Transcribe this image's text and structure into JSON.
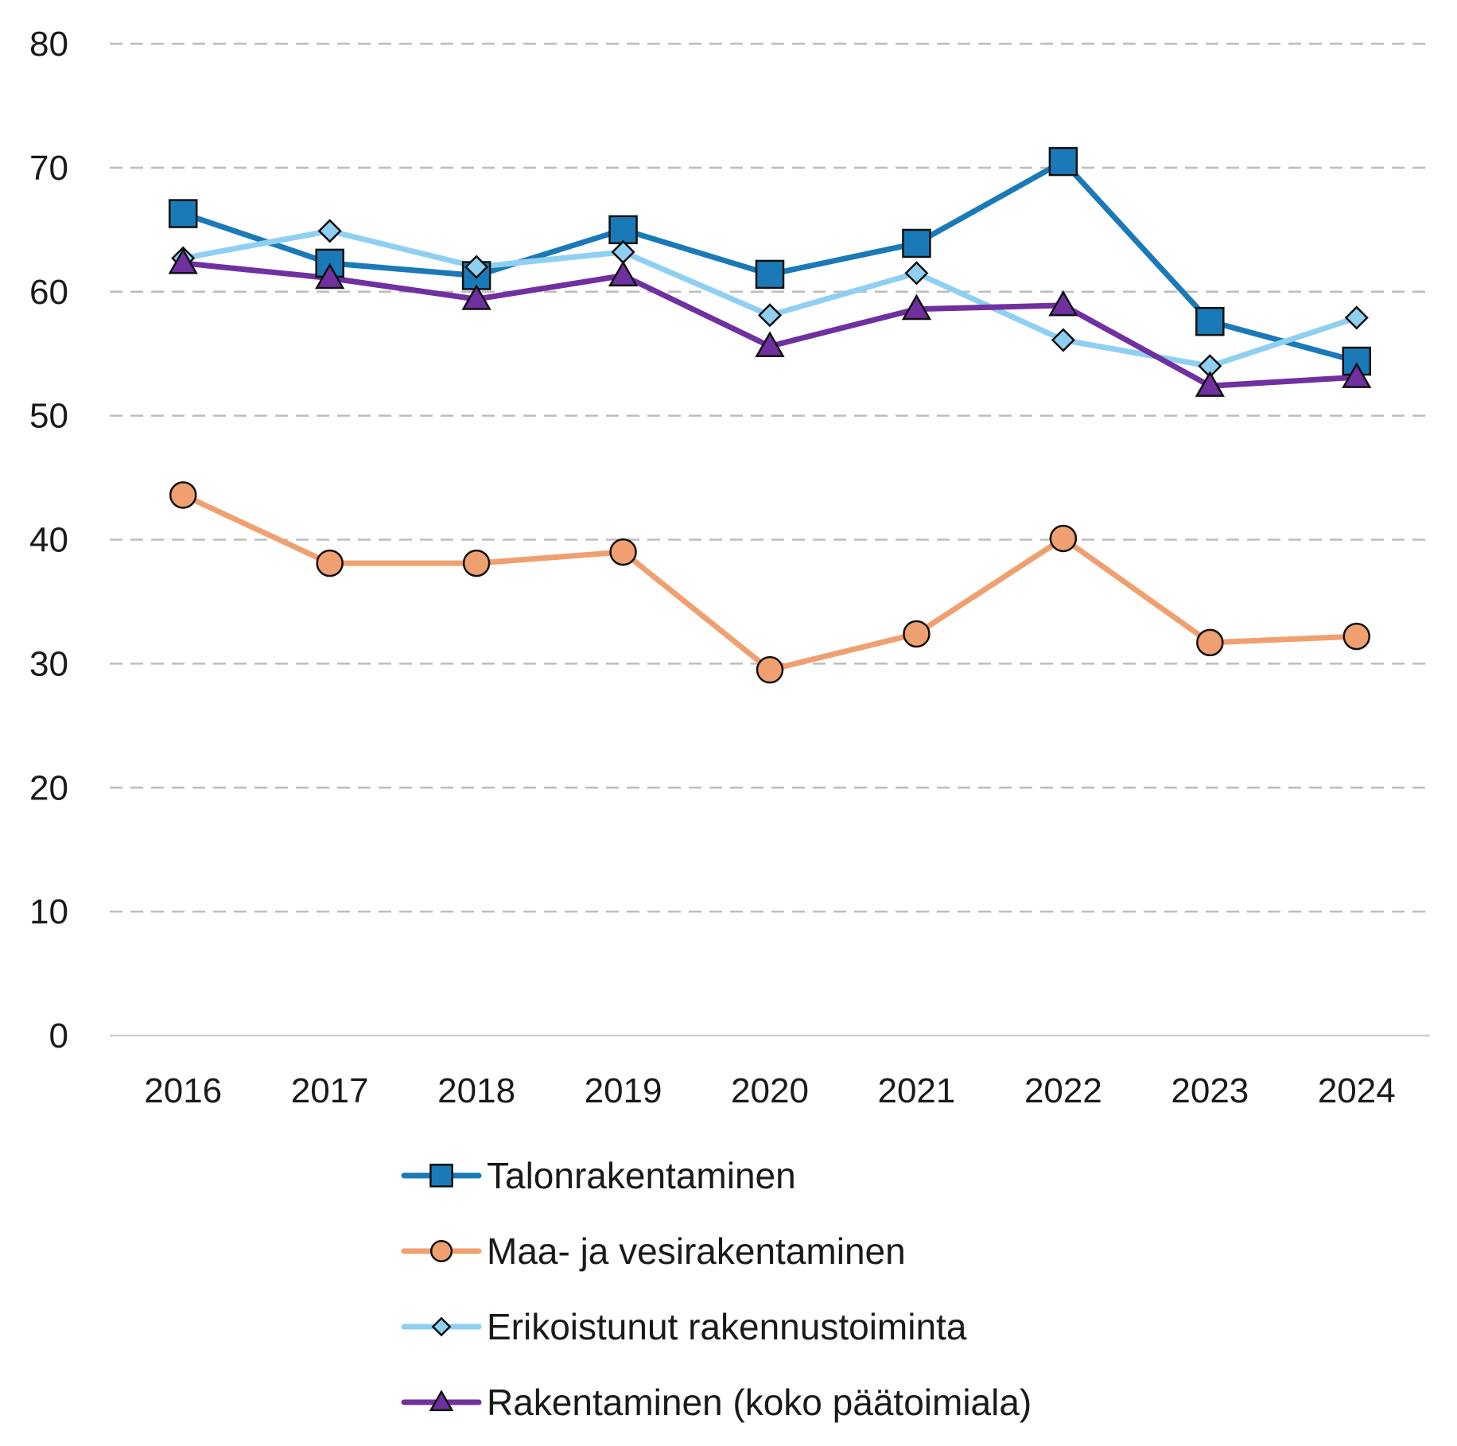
{
  "chart_data": {
    "type": "line",
    "title": "",
    "xlabel": "",
    "ylabel": "",
    "ylim": [
      0,
      80
    ],
    "yticks": [
      0,
      10,
      20,
      30,
      40,
      50,
      60,
      70,
      80
    ],
    "grid": "horizontal dashed",
    "legend_position": "bottom",
    "categories": [
      "2016",
      "2017",
      "2018",
      "2019",
      "2020",
      "2021",
      "2022",
      "2023",
      "2024"
    ],
    "series": [
      {
        "name": "Talonrakentaminen",
        "color": "#1a7ab8",
        "marker": "square",
        "marker_fill": "#1a7ab8",
        "values": [
          66.3,
          62.3,
          61.3,
          65.0,
          61.4,
          63.9,
          70.5,
          57.6,
          54.4
        ]
      },
      {
        "name": "Maa- ja vesirakentaminen",
        "color": "#f0a070",
        "marker": "circle",
        "marker_fill": "#f0a070",
        "values": [
          43.6,
          38.1,
          38.1,
          39.0,
          29.5,
          32.4,
          40.1,
          31.7,
          32.2
        ]
      },
      {
        "name": "Erikoistunut rakennustoiminta",
        "color": "#8fd0f2",
        "marker": "diamond",
        "marker_fill": "#8fd0f2",
        "values": [
          62.7,
          64.9,
          62.0,
          63.2,
          58.1,
          61.5,
          56.1,
          54.0,
          57.9
        ]
      },
      {
        "name": "Rakentaminen (koko päätoimiala)",
        "color": "#7030a0",
        "marker": "triangle",
        "marker_fill": "#7030a0",
        "values": [
          62.3,
          61.1,
          59.4,
          61.3,
          55.6,
          58.6,
          58.9,
          52.4,
          53.1
        ]
      }
    ]
  }
}
